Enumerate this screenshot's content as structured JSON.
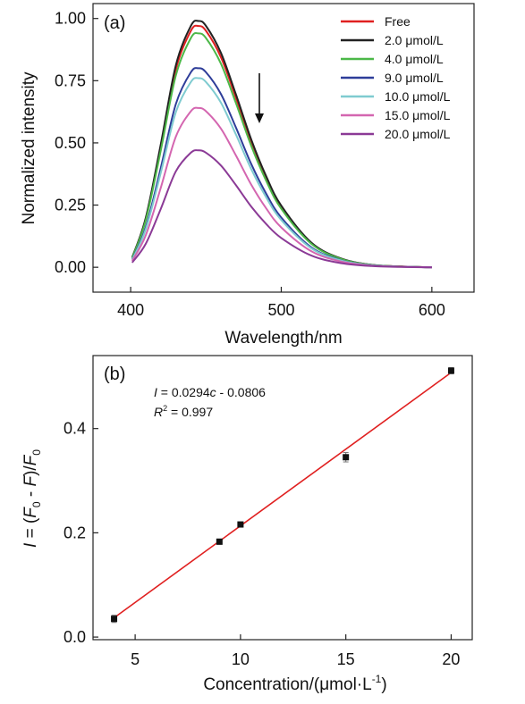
{
  "chart_data": [
    {
      "panel": "(a)",
      "type": "line",
      "xlabel": "Wavelength/nm",
      "ylabel": "Normalized intensity",
      "xlim": [
        375,
        628
      ],
      "ylim": [
        -0.1,
        1.06
      ],
      "xticks": [
        "400",
        "500",
        "600"
      ],
      "yticks": [
        "0.00",
        "0.25",
        "0.50",
        "0.75",
        "1.00"
      ],
      "legend_position": "top-right",
      "annotation": "downward arrow indicating decreasing intensity with increasing concentration",
      "peak_wavelength": 445,
      "series": [
        {
          "name": "Free",
          "color": "#e02020",
          "peak": 0.97
        },
        {
          "name": "2.0 μmol/L",
          "color": "#222222",
          "peak": 0.99
        },
        {
          "name": "4.0 μmol/L",
          "color": "#4cb848",
          "peak": 0.94
        },
        {
          "name": "9.0 μmol/L",
          "color": "#2e3d99",
          "peak": 0.8
        },
        {
          "name": "10.0 μmol/L",
          "color": "#7fcbd0",
          "peak": 0.76
        },
        {
          "name": "15.0 μmol/L",
          "color": "#d466b0",
          "peak": 0.64
        },
        {
          "name": "20.0 μmol/L",
          "color": "#8b3a96",
          "peak": 0.47
        }
      ],
      "x": [
        401,
        410,
        420,
        430,
        440,
        445,
        450,
        460,
        470,
        480,
        490,
        500,
        520,
        540,
        560,
        580,
        600
      ],
      "shape": [
        0.04,
        0.2,
        0.5,
        0.82,
        0.98,
        1.0,
        0.98,
        0.87,
        0.7,
        0.52,
        0.37,
        0.25,
        0.1,
        0.035,
        0.01,
        0.003,
        0.0
      ]
    },
    {
      "panel": "(b)",
      "type": "scatter",
      "xlabel_parts": [
        "Concentration/(",
        "μ",
        "mol·L",
        "-1",
        ")"
      ],
      "ylabel_parts": [
        "I",
        " = (",
        "F",
        "0",
        " - ",
        "F",
        ")/",
        "F",
        "0"
      ],
      "xlim": [
        3,
        21
      ],
      "ylim": [
        -0.005,
        0.54
      ],
      "xticks": [
        "5",
        "10",
        "15",
        "20"
      ],
      "yticks": [
        "0.0",
        "0.2",
        "0.4"
      ],
      "equation_parts": [
        "I",
        " = 0.0294",
        "c",
        " - 0.0806"
      ],
      "r2_parts": [
        "R",
        "2",
        " = 0.997"
      ],
      "points": [
        {
          "x": 4,
          "y": 0.035,
          "err": 0.007
        },
        {
          "x": 9,
          "y": 0.183,
          "err": 0.005
        },
        {
          "x": 10,
          "y": 0.216,
          "err": 0.004
        },
        {
          "x": 15,
          "y": 0.345,
          "err": 0.009
        },
        {
          "x": 20,
          "y": 0.511,
          "err": 0.006
        }
      ],
      "fit": {
        "slope": 0.0294,
        "intercept": -0.0806,
        "x_range": [
          4,
          20
        ],
        "color": "#e02020"
      }
    }
  ]
}
